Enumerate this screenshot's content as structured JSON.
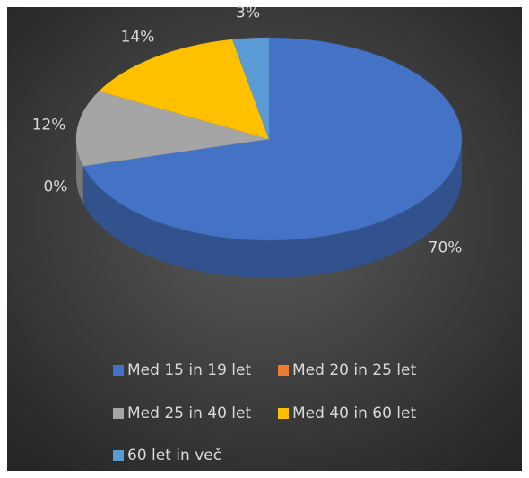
{
  "chart_data": {
    "type": "pie",
    "categories": [
      "Med 15 in 19 let",
      "Med 20 in 25 let",
      "Med 25 in 40 let",
      "Med 40 in 60 let",
      "60 let in več"
    ],
    "values": [
      70,
      0,
      12,
      14,
      3
    ],
    "value_labels": [
      "70%",
      "0%",
      "12%",
      "14%",
      "3%"
    ],
    "colors": [
      "#4472c4",
      "#ed7d31",
      "#a5a5a5",
      "#ffc000",
      "#5b9bd5"
    ],
    "legend": "bottom"
  }
}
